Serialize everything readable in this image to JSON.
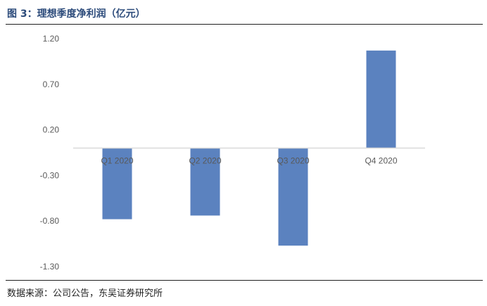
{
  "header": {
    "title": "图 3：理想季度净利润（亿元）"
  },
  "footer": {
    "source": "数据来源：公司公告，东吴证券研究所"
  },
  "colors": {
    "bar": "#5b82bf",
    "axis": "#d9d9d9",
    "rule": "#1f1f1f",
    "title": "#2b4a7a"
  },
  "chart_data": {
    "type": "bar",
    "categories": [
      "Q1 2020",
      "Q2 2020",
      "Q3 2020",
      "Q4 2020"
    ],
    "values": [
      -0.78,
      -0.74,
      -1.07,
      1.07
    ],
    "yticks": [
      1.2,
      0.7,
      0.2,
      -0.3,
      -0.8,
      -1.3
    ],
    "ytick_labels": [
      "1.20",
      "0.70",
      "0.20",
      "-0.30",
      "-0.80",
      "-1.30"
    ],
    "ylim": [
      -1.3,
      1.2
    ],
    "grid": false,
    "title": "",
    "xlabel": "",
    "ylabel": ""
  }
}
